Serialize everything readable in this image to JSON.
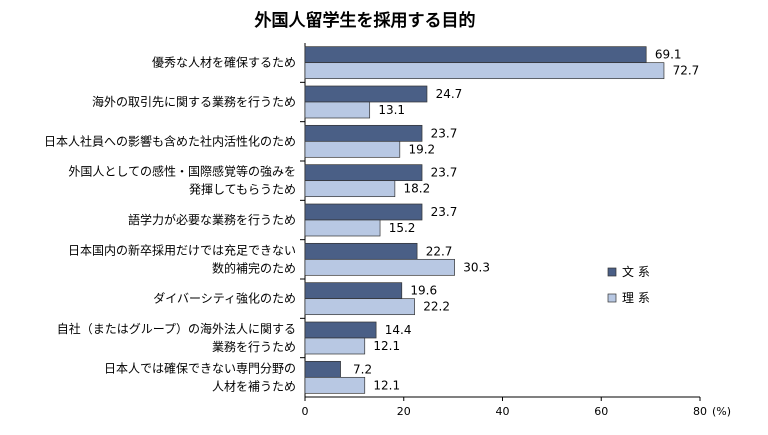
{
  "chart_data": {
    "type": "bar",
    "orientation": "horizontal",
    "title": "外国人留学生を採用する目的",
    "categories": [
      [
        "優秀な人材を確保するため"
      ],
      [
        "海外の取引先に関する業務を行うため"
      ],
      [
        "日本人社員への影響も含めた社内活性化のため"
      ],
      [
        "外国人としての感性・国際感覚等の強みを",
        "発揮してもらうため"
      ],
      [
        "語学力が必要な業務を行うため"
      ],
      [
        "日本国内の新卒採用だけでは充足できない",
        "数的補完のため"
      ],
      [
        "ダイバーシティ強化のため"
      ],
      [
        "自社（またはグループ）の海外法人に関する",
        "業務を行うため"
      ],
      [
        "日本人では確保できない専門分野の",
        "人材を補うため"
      ]
    ],
    "series": [
      {
        "name": "文 系",
        "color": "#4a5f86",
        "values": [
          69.1,
          24.7,
          23.7,
          23.7,
          23.7,
          22.7,
          19.6,
          14.4,
          7.2
        ]
      },
      {
        "name": "理 系",
        "color": "#b8c8e3",
        "values": [
          72.7,
          13.1,
          19.2,
          18.2,
          15.2,
          30.3,
          22.2,
          12.1,
          12.1
        ]
      }
    ],
    "xlim": [
      0,
      80
    ],
    "xticks": [
      "0",
      "20",
      "40",
      "60",
      "80"
    ],
    "xunit": "(%)",
    "legend_position": "right"
  }
}
